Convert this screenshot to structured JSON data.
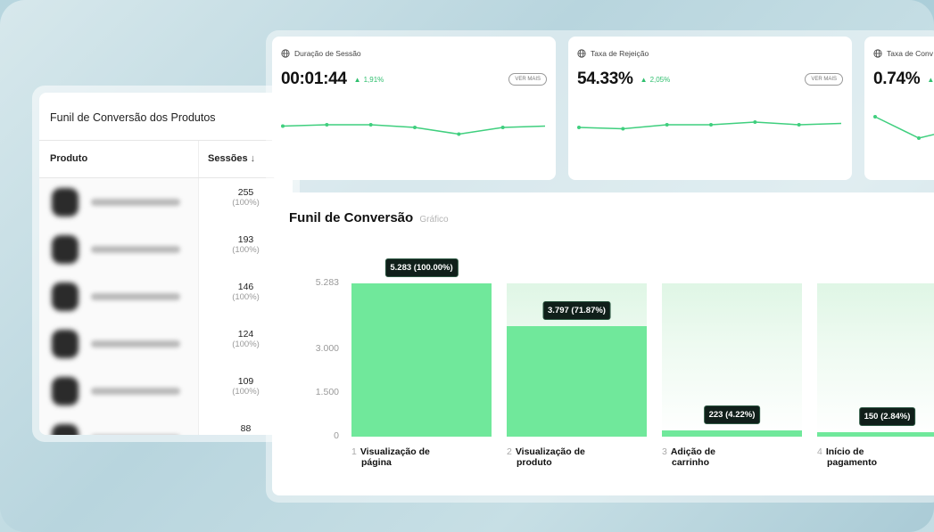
{
  "left_panel": {
    "title": "Funil de Conversão dos Produtos",
    "columns": {
      "product": "Produto",
      "sessions": "Sessões",
      "sort_icon": "arrow-down-icon"
    },
    "rows": [
      {
        "sessions": "255",
        "pct": "(100%)"
      },
      {
        "sessions": "193",
        "pct": "(100%)"
      },
      {
        "sessions": "146",
        "pct": "(100%)"
      },
      {
        "sessions": "124",
        "pct": "(100%)"
      },
      {
        "sessions": "109",
        "pct": "(100%)"
      },
      {
        "sessions": "88",
        "pct": ""
      }
    ]
  },
  "metrics": [
    {
      "label": "Duração de Sessão",
      "value": "00:01:44",
      "delta": "1,91%",
      "button": "VER MAIS",
      "icon": "globe-icon",
      "spark": [
        0.55,
        0.5,
        0.5,
        0.6,
        0.85,
        0.6,
        0.55
      ]
    },
    {
      "label": "Taxa de Rejeição",
      "value": "54.33%",
      "delta": "2,05%",
      "button": "VER MAIS",
      "icon": "globe-icon",
      "spark": [
        0.6,
        0.65,
        0.5,
        0.5,
        0.4,
        0.5,
        0.45
      ]
    },
    {
      "label": "Taxa de Conv",
      "value": "0.74%",
      "delta": "",
      "button": "",
      "icon": "globe-icon",
      "spark": [
        0.2,
        1.0,
        0.6
      ]
    }
  ],
  "funnel": {
    "title": "Funil de Conversão",
    "subtitle": "Gráfico",
    "accent": "#70e89b"
  },
  "chart_data": {
    "type": "bar",
    "title": "Funil de Conversão",
    "ylim": [
      0,
      5283
    ],
    "yticks": [
      "5.283",
      "3.000",
      "1.500",
      "0"
    ],
    "categories": [
      "Visualização de página",
      "Visualização de produto",
      "Adição de carrinho",
      "Início de pagamento"
    ],
    "category_lines": [
      [
        "Visualização de",
        "página"
      ],
      [
        "Visualização de",
        "produto"
      ],
      [
        "Adição de",
        "carrinho"
      ],
      [
        "Início de",
        "pagamento"
      ]
    ],
    "values": [
      5283,
      3797,
      223,
      150
    ],
    "labels": [
      "5.283 (100.00%)",
      "3.797 (71.87%)",
      "223 (4.22%)",
      "150 (2.84%)"
    ]
  }
}
